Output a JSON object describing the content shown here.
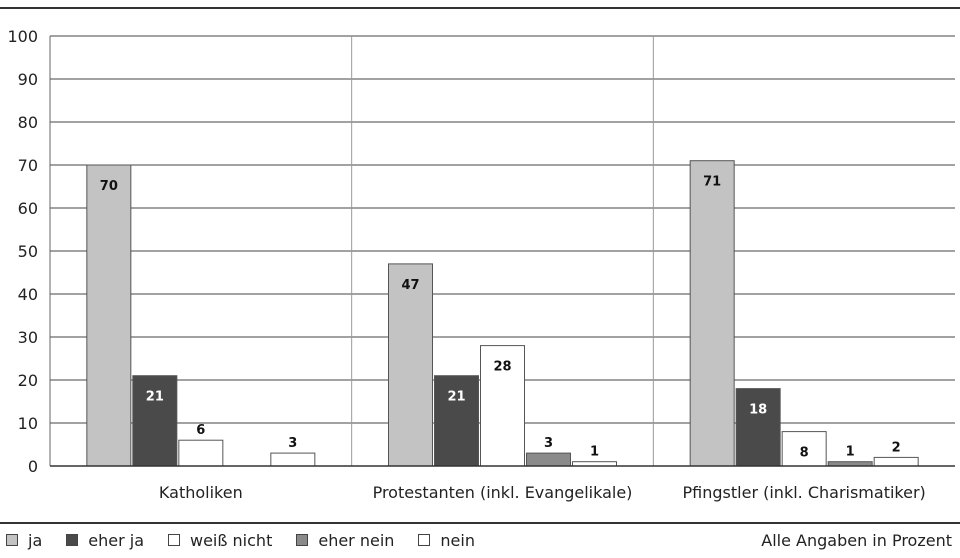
{
  "chart_data": {
    "type": "bar",
    "title": "",
    "xlabel": "",
    "ylabel": "",
    "ylim": [
      0,
      100
    ],
    "yticks": [
      "0",
      "10",
      "20",
      "30",
      "40",
      "50",
      "60",
      "70",
      "80",
      "90",
      "100"
    ],
    "grid": true,
    "categories": [
      "Katholiken",
      "Protestanten (inkl. Evangelikale)",
      "Pfingstler (inkl. Charismatiker)"
    ],
    "series": [
      {
        "name": "ja",
        "color": "#c3c3c3",
        "label_color": "#111111",
        "values": [
          70,
          47,
          71
        ]
      },
      {
        "name": "eher ja",
        "color": "#4a4a4a",
        "label_color": "#ffffff",
        "values": [
          21,
          21,
          18
        ]
      },
      {
        "name": "weiß nicht",
        "color": "#ffffff",
        "label_color": "#111111",
        "values": [
          6,
          28,
          8
        ]
      },
      {
        "name": "eher nein",
        "color": "#8a8a8a",
        "label_color": "#111111",
        "values": [
          0,
          3,
          1
        ]
      },
      {
        "name": "nein",
        "color": "#ffffff",
        "label_color": "#111111",
        "values": [
          3,
          1,
          2
        ]
      }
    ],
    "data_labels": [
      [
        "70",
        "47",
        "71"
      ],
      [
        "21",
        "21",
        "18"
      ],
      [
        "6",
        "28",
        "8"
      ],
      [
        "",
        "3",
        "1"
      ],
      [
        "3",
        "1",
        "2"
      ]
    ],
    "legend_placement": "bottom",
    "note": "Alle Angaben in Prozent"
  }
}
